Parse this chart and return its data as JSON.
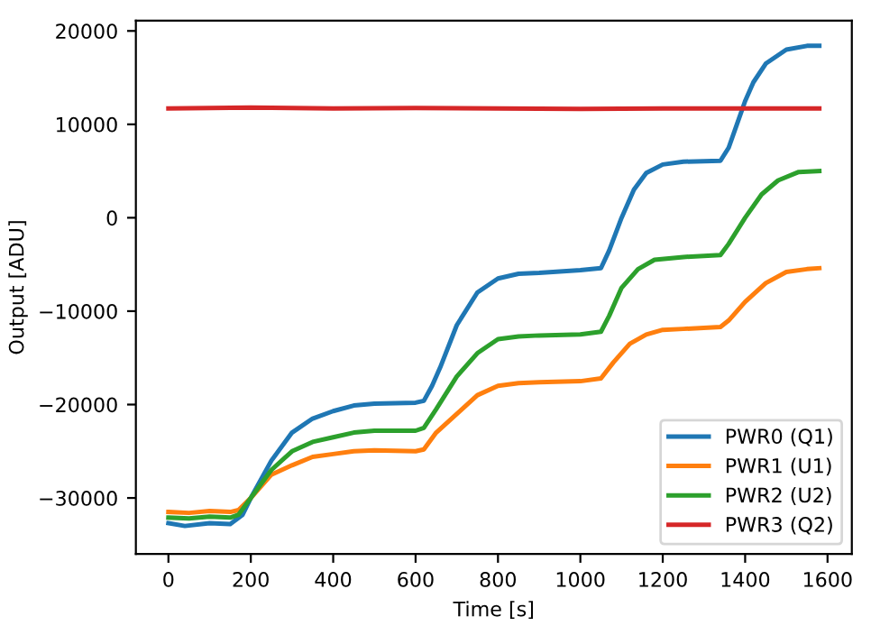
{
  "chart_data": {
    "type": "line",
    "xlabel": "Time [s]",
    "ylabel": "Output [ADU]",
    "xlim": [
      -79,
      1659
    ],
    "ylim": [
      -36000,
      21100
    ],
    "xticks": [
      0,
      200,
      400,
      600,
      800,
      1000,
      1200,
      1400,
      1600
    ],
    "yticks": [
      {
        "value": -30000,
        "label": "−30000"
      },
      {
        "value": -20000,
        "label": "−20000"
      },
      {
        "value": -10000,
        "label": "−10000"
      },
      0,
      10000,
      20000
    ],
    "grid": false,
    "legend": "bottom right",
    "marker": "none",
    "line_style": "solid",
    "series": [
      {
        "name": "PWR0 (Q1)",
        "color": "#1f77b4",
        "x": [
          0,
          40,
          100,
          150,
          180,
          200,
          250,
          300,
          350,
          400,
          450,
          500,
          600,
          620,
          640,
          660,
          700,
          750,
          800,
          850,
          900,
          1000,
          1050,
          1070,
          1100,
          1130,
          1160,
          1200,
          1250,
          1340,
          1360,
          1380,
          1400,
          1420,
          1450,
          1500,
          1550,
          1580
        ],
        "values": [
          -32700,
          -33000,
          -32700,
          -32800,
          -31800,
          -30000,
          -26000,
          -23000,
          -21500,
          -20700,
          -20100,
          -19900,
          -19800,
          -19600,
          -18000,
          -16000,
          -11500,
          -8000,
          -6500,
          -6000,
          -5900,
          -5600,
          -5400,
          -3500,
          0,
          3000,
          4800,
          5700,
          6000,
          6100,
          7500,
          10000,
          12500,
          14500,
          16500,
          18000,
          18400,
          18400
        ]
      },
      {
        "name": "PWR1 (U1)",
        "color": "#ff7f0e",
        "x": [
          0,
          50,
          100,
          150,
          170,
          200,
          250,
          300,
          350,
          400,
          450,
          500,
          600,
          620,
          650,
          700,
          750,
          800,
          850,
          900,
          1000,
          1050,
          1080,
          1120,
          1160,
          1200,
          1250,
          1340,
          1360,
          1400,
          1450,
          1500,
          1550,
          1580
        ],
        "values": [
          -31500,
          -31600,
          -31400,
          -31500,
          -31300,
          -30000,
          -27500,
          -26500,
          -25600,
          -25300,
          -25000,
          -24900,
          -25000,
          -24800,
          -23000,
          -21000,
          -19000,
          -18000,
          -17700,
          -17600,
          -17500,
          -17200,
          -15500,
          -13500,
          -12500,
          -12000,
          -11900,
          -11700,
          -11000,
          -9000,
          -7000,
          -5800,
          -5500,
          -5400
        ]
      },
      {
        "name": "PWR2 (U2)",
        "color": "#2ca02c",
        "x": [
          0,
          50,
          100,
          150,
          170,
          200,
          250,
          300,
          350,
          400,
          450,
          500,
          600,
          620,
          650,
          700,
          750,
          800,
          850,
          900,
          1000,
          1050,
          1070,
          1100,
          1140,
          1180,
          1250,
          1340,
          1360,
          1400,
          1440,
          1480,
          1530,
          1580
        ],
        "values": [
          -32100,
          -32200,
          -32000,
          -32100,
          -31800,
          -30000,
          -27000,
          -25000,
          -24000,
          -23500,
          -23000,
          -22800,
          -22800,
          -22500,
          -20500,
          -17000,
          -14500,
          -13000,
          -12700,
          -12600,
          -12500,
          -12200,
          -10500,
          -7500,
          -5500,
          -4500,
          -4200,
          -4000,
          -2800,
          0,
          2500,
          4000,
          4900,
          5000
        ]
      },
      {
        "name": "PWR3 (Q2)",
        "color": "#d62728",
        "x": [
          0,
          200,
          400,
          600,
          800,
          1000,
          1200,
          1400,
          1580
        ],
        "values": [
          11700,
          11800,
          11700,
          11750,
          11700,
          11650,
          11700,
          11700,
          11700
        ]
      }
    ]
  }
}
